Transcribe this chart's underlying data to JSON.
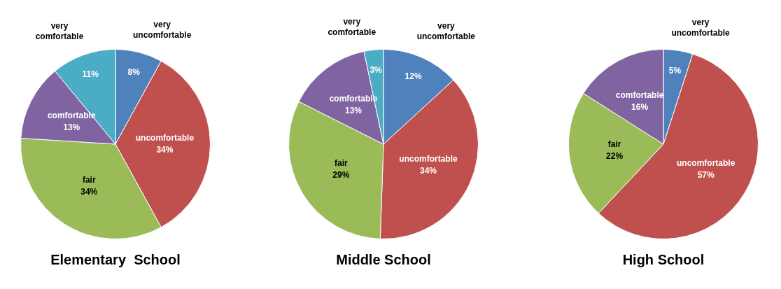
{
  "chart_data": [
    {
      "type": "pie",
      "title": "Elementary  School",
      "categories": [
        "very uncomfortable",
        "uncomfortable",
        "fair",
        "comfortable",
        "very comfortable"
      ],
      "values": [
        8,
        34,
        34,
        13,
        11
      ],
      "value_labels": [
        "8%",
        "34%",
        "34%",
        "13%",
        "11%"
      ],
      "colors": [
        "#4f81bd",
        "#c0504d",
        "#9bbb59",
        "#8064a2",
        "#4bacc6"
      ]
    },
    {
      "type": "pie",
      "title": "Middle School",
      "categories": [
        "very uncomfortable",
        "uncomfortable",
        "fair",
        "comfortable",
        "very comfortable"
      ],
      "values": [
        12,
        34,
        29,
        13,
        3
      ],
      "value_labels": [
        "12%",
        "34%",
        "29%",
        "13%",
        "3%"
      ],
      "colors": [
        "#4f81bd",
        "#c0504d",
        "#9bbb59",
        "#8064a2",
        "#4bacc6"
      ]
    },
    {
      "type": "pie",
      "title": "High School",
      "categories": [
        "very uncomfortable",
        "uncomfortable",
        "fair",
        "comfortable"
      ],
      "values": [
        5,
        57,
        22,
        16
      ],
      "value_labels": [
        "5%",
        "57%",
        "22%",
        "16%"
      ],
      "colors": [
        "#4f81bd",
        "#c0504d",
        "#9bbb59",
        "#8064a2"
      ]
    }
  ]
}
